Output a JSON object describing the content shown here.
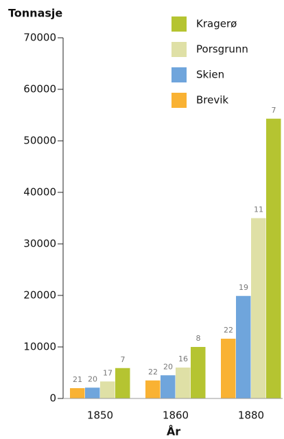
{
  "chart_data": {
    "type": "bar",
    "title": "Tonnasje",
    "x_label": "År",
    "categories": [
      "1850",
      "1860",
      "1880"
    ],
    "series": [
      {
        "name": "Brevik",
        "color": "#f9b233",
        "values": [
          2000,
          3500,
          11600
        ],
        "bar_labels": [
          21,
          22,
          22
        ]
      },
      {
        "name": "Skien",
        "color": "#6fa5dc",
        "values": [
          2100,
          4500,
          19900
        ],
        "bar_labels": [
          20,
          20,
          19
        ]
      },
      {
        "name": "Porsgrunn",
        "color": "#dfe0a6",
        "values": [
          3300,
          6000,
          35000
        ],
        "bar_labels": [
          17,
          16,
          11
        ]
      },
      {
        "name": "Kragerø",
        "color": "#b5c431",
        "values": [
          5900,
          10000,
          54300
        ],
        "bar_labels": [
          7,
          8,
          7
        ]
      }
    ],
    "ylim": [
      0,
      70000
    ],
    "yticks": [
      0,
      10000,
      20000,
      30000,
      40000,
      50000,
      60000,
      70000
    ],
    "legend_position": "top-right"
  }
}
